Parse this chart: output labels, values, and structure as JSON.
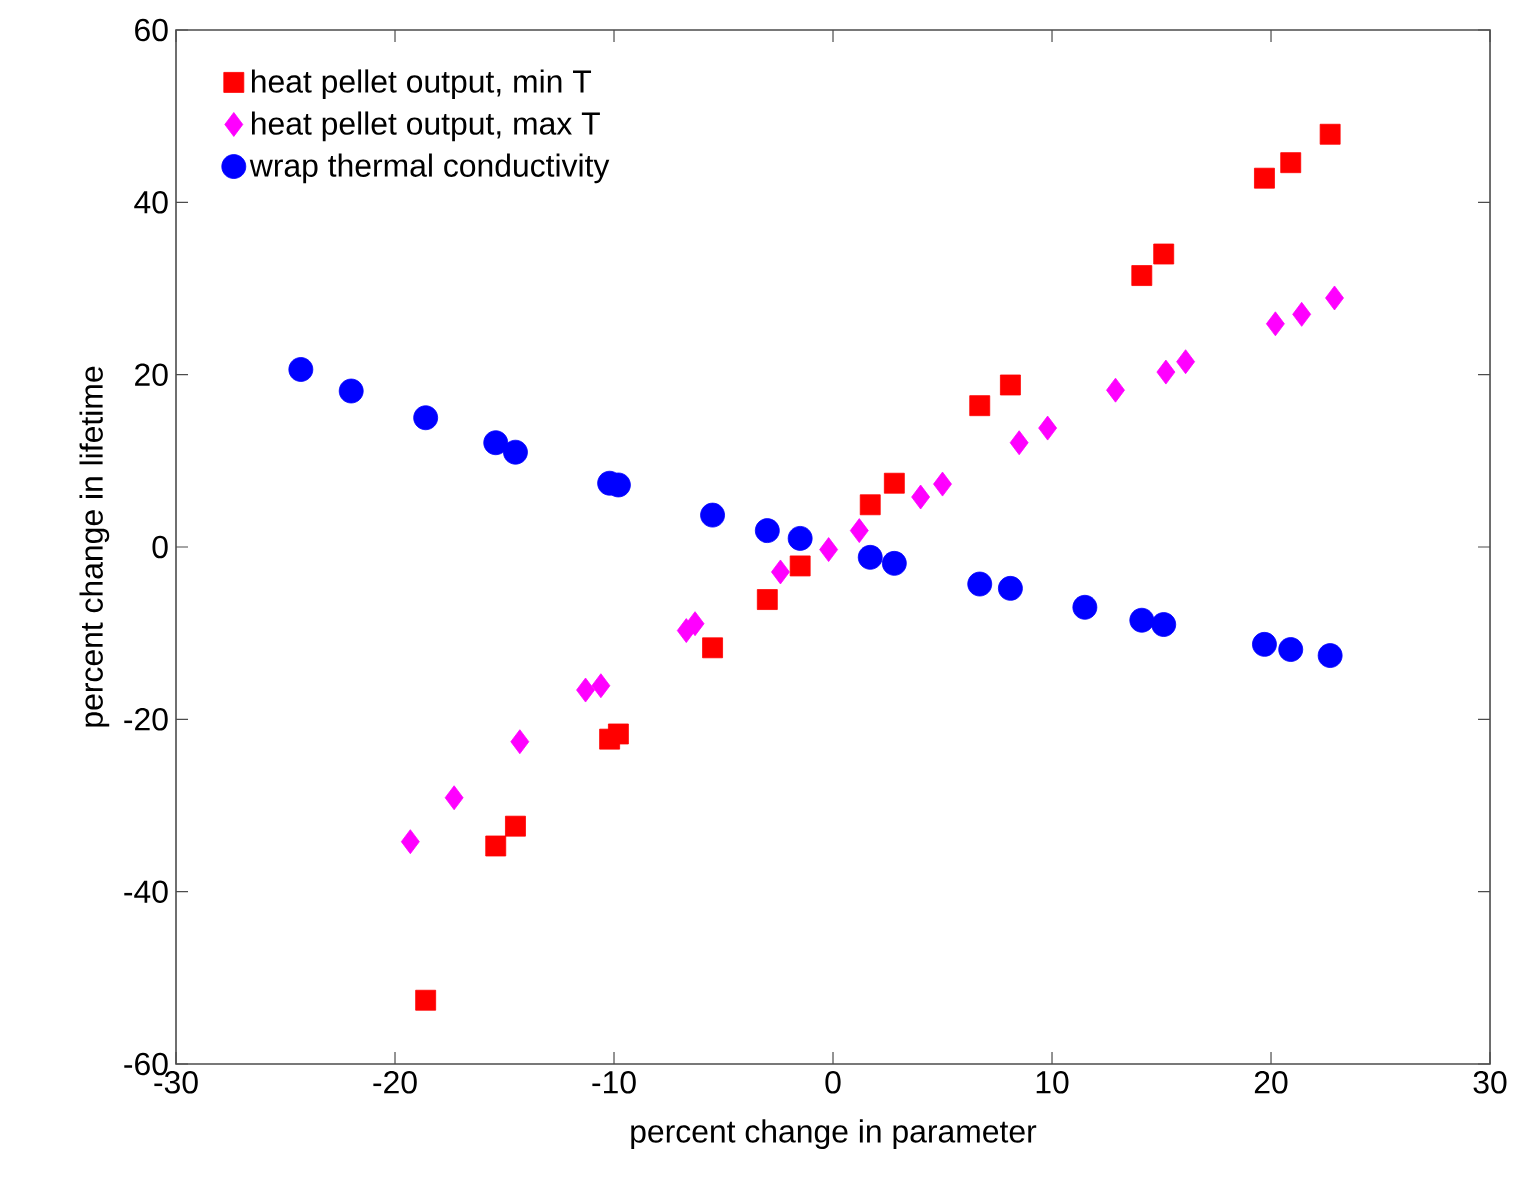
{
  "chart_data": {
    "type": "scatter",
    "xlabel": "percent change in parameter",
    "ylabel": "percent change in lifetime",
    "xlim": [
      -30,
      30
    ],
    "ylim": [
      -60,
      60
    ],
    "xticks": [
      -30,
      -20,
      -10,
      0,
      10,
      20,
      30
    ],
    "yticks": [
      -60,
      -40,
      -20,
      0,
      20,
      40,
      60
    ],
    "grid": false,
    "legend": "top left",
    "series": [
      {
        "name": "heat pellet output, min T",
        "color": "#ff0000",
        "marker": "square",
        "x": [
          -18.6,
          -15.4,
          -14.5,
          -10.2,
          -9.8,
          -5.5,
          -3.0,
          -1.5,
          1.7,
          2.8,
          6.7,
          8.1,
          14.1,
          15.1,
          19.7,
          20.9,
          22.7
        ],
        "values": [
          -52.6,
          -34.7,
          -32.4,
          -22.3,
          -21.7,
          -11.7,
          -6.1,
          -2.2,
          4.9,
          7.4,
          16.4,
          18.8,
          31.5,
          34.0,
          42.8,
          44.6,
          47.9
        ]
      },
      {
        "name": "heat pellet output, max T",
        "color": "#ff00ff",
        "marker": "diamond",
        "x": [
          -19.3,
          -17.3,
          -14.3,
          -11.3,
          -10.6,
          -6.7,
          -6.3,
          -2.4,
          -0.2,
          1.2,
          4.0,
          5.0,
          8.5,
          9.8,
          12.9,
          15.2,
          16.1,
          20.2,
          21.4,
          22.9
        ],
        "values": [
          -34.2,
          -29.1,
          -22.6,
          -16.6,
          -16.1,
          -9.7,
          -8.9,
          -2.9,
          -0.3,
          1.9,
          5.8,
          7.3,
          12.1,
          13.8,
          18.2,
          20.3,
          21.5,
          25.9,
          27.0,
          28.9
        ]
      },
      {
        "name": "wrap thermal conductivity",
        "color": "#0000ff",
        "marker": "circle",
        "x": [
          -24.3,
          -22.0,
          -18.6,
          -15.4,
          -14.5,
          -10.2,
          -9.8,
          -5.5,
          -3.0,
          -1.5,
          1.7,
          2.8,
          6.7,
          8.1,
          11.5,
          14.1,
          15.1,
          19.7,
          20.9,
          22.7
        ],
        "values": [
          20.6,
          18.1,
          15.0,
          12.1,
          11.0,
          7.4,
          7.2,
          3.7,
          1.9,
          1.0,
          -1.2,
          -1.9,
          -4.3,
          -4.8,
          -7.0,
          -8.5,
          -9.0,
          -11.3,
          -11.9,
          -12.6
        ]
      }
    ]
  }
}
